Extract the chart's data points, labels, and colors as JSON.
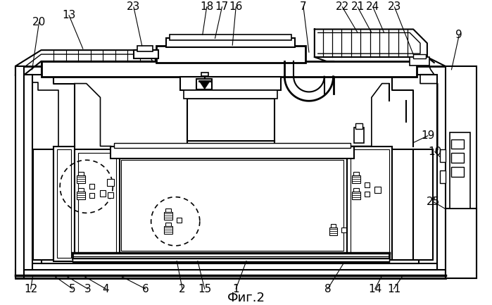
{
  "figure_label": "Фиг.2",
  "bg": "#ffffff",
  "lc": "#000000",
  "fig_width": 6.99,
  "fig_height": 4.33,
  "dpi": 100,
  "bottom_labels": [
    [
      "12",
      40,
      415
    ],
    [
      "5",
      100,
      415
    ],
    [
      "3",
      122,
      415
    ],
    [
      "4",
      148,
      415
    ],
    [
      "6",
      205,
      415
    ],
    [
      "2",
      258,
      415
    ],
    [
      "15",
      290,
      415
    ],
    [
      "1",
      335,
      415
    ],
    [
      "8",
      467,
      415
    ],
    [
      "14",
      535,
      415
    ],
    [
      "11",
      562,
      415
    ]
  ],
  "top_labels": [
    [
      "20",
      52,
      32
    ],
    [
      "13",
      95,
      22
    ],
    [
      "23",
      188,
      10
    ],
    [
      "18",
      293,
      10
    ],
    [
      "17",
      315,
      10
    ],
    [
      "16",
      335,
      10
    ],
    [
      "7",
      432,
      10
    ],
    [
      "22",
      488,
      10
    ],
    [
      "21",
      510,
      10
    ],
    [
      "24",
      532,
      10
    ],
    [
      "23",
      563,
      10
    ],
    [
      "9",
      656,
      50
    ],
    [
      "19",
      611,
      195
    ],
    [
      "10",
      621,
      218
    ],
    [
      "25",
      619,
      290
    ]
  ]
}
